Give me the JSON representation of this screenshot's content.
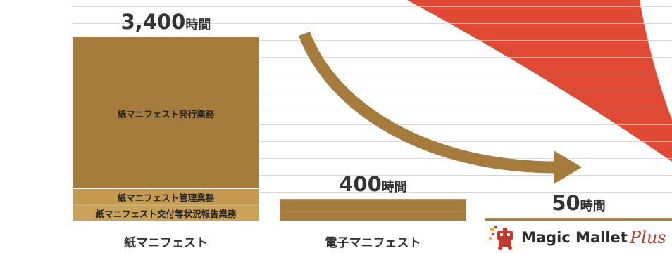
{
  "colors": {
    "issuance": "#a67c3d",
    "management": "#c59a4e",
    "reporting": "#caa25a",
    "total_bar": "#a67c3d",
    "arrow": "#a67c3d",
    "red_area": "#e04a35",
    "grid": "#d9d9d9",
    "text": "#333333"
  },
  "chart_data": {
    "type": "bar",
    "stacked": true,
    "categories": [
      "紙マニフェスト",
      "電子マニフェスト",
      "Magic Mallet Plus"
    ],
    "series": [
      {
        "name": "紙マニフェスト発行業務",
        "values": [
          2800,
          null,
          null
        ]
      },
      {
        "name": "紙マニフェスト管理業務",
        "values": [
          300,
          null,
          null
        ]
      },
      {
        "name": "紙マニフェスト交付等状況報告業務",
        "values": [
          300,
          null,
          null
        ]
      },
      {
        "name": "",
        "values": [
          null,
          400,
          50
        ]
      }
    ],
    "totals": [
      3400,
      400,
      50
    ],
    "total_labels": [
      {
        "number": "3,400",
        "unit": "時間"
      },
      {
        "number": "400",
        "unit": "時間"
      },
      {
        "number": "50",
        "unit": "時間"
      }
    ],
    "ylim": [
      0,
      3900
    ],
    "grid": true,
    "annotations": [
      "decreasing-arrow"
    ]
  },
  "logo": {
    "brand": "Magic Mallet",
    "plus": "Plus",
    "icon": "mallet-robot-icon"
  }
}
